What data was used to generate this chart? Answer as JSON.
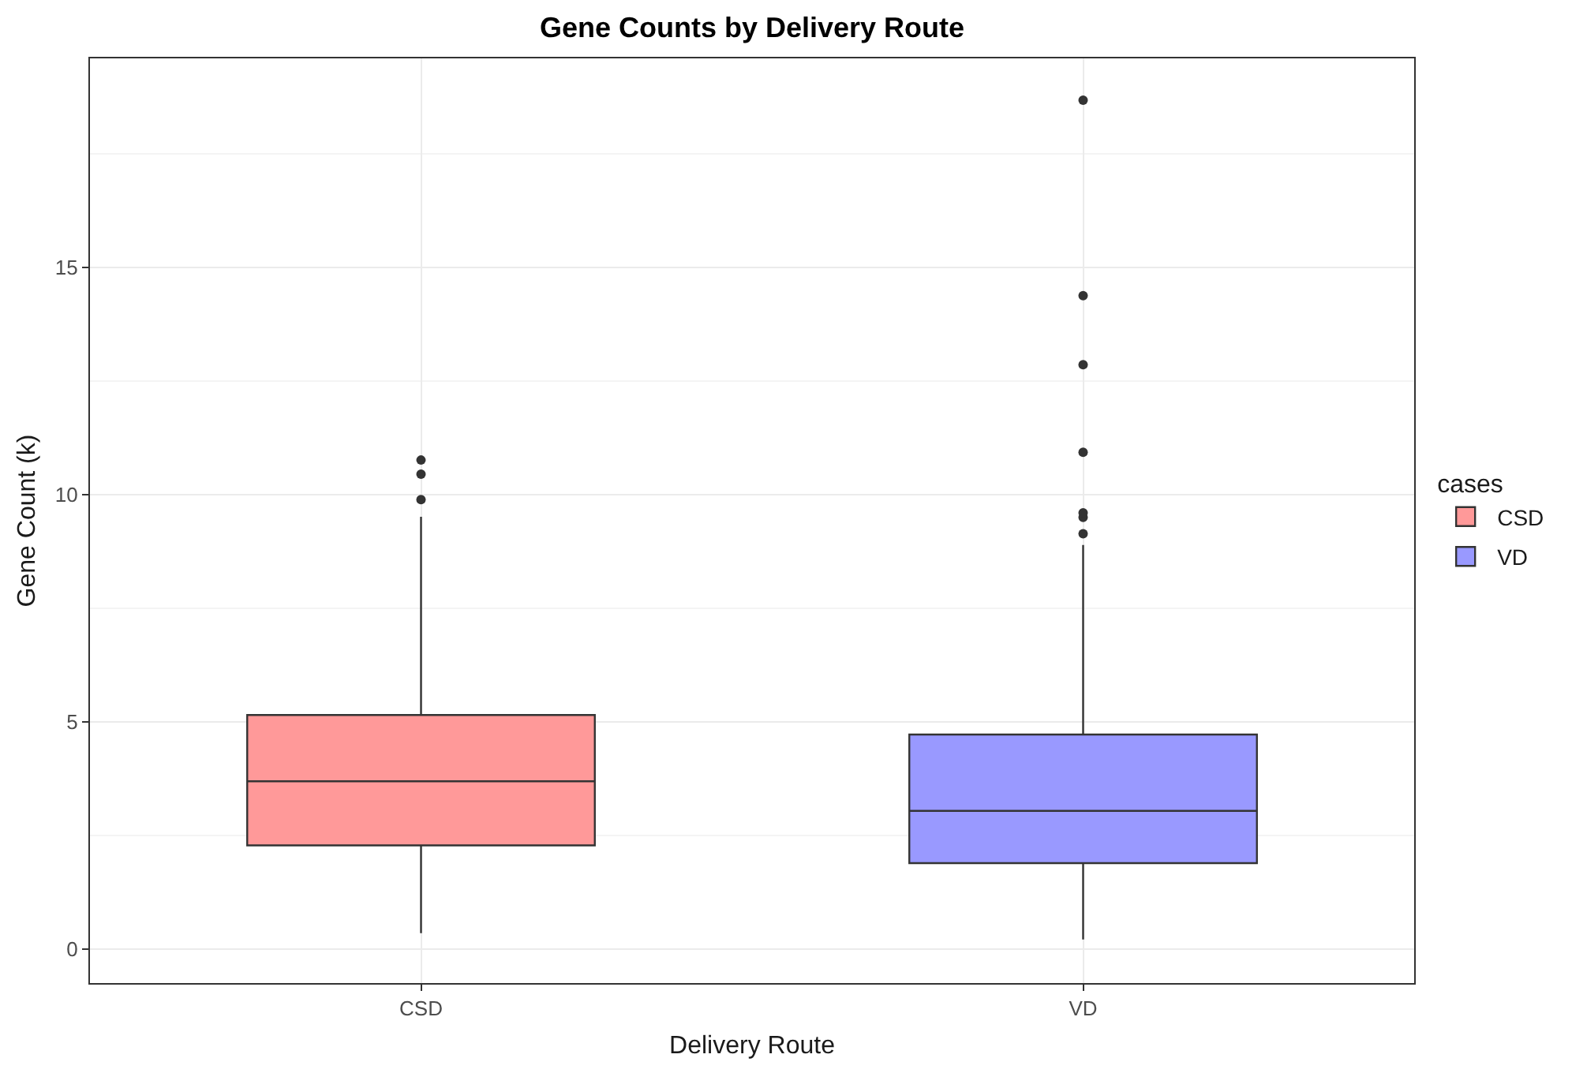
{
  "chart_data": {
    "type": "box",
    "title": "Gene Counts by Delivery Route",
    "xlabel": "Delivery Route",
    "ylabel": "Gene Count (k)",
    "legend_title": "cases",
    "categories": [
      "CSD",
      "VD"
    ],
    "series": [
      {
        "name": "CSD",
        "color": "#ff9999",
        "boxes": [
          {
            "low": 0.35,
            "q1": 2.28,
            "median": 3.69,
            "q3": 5.15,
            "high": 9.51,
            "outliers": [
              9.89,
              10.45,
              10.76
            ]
          },
          null
        ]
      },
      {
        "name": "VD",
        "color": "#9999ff",
        "boxes": [
          null,
          {
            "low": 0.21,
            "q1": 1.89,
            "median": 3.04,
            "q3": 4.72,
            "high": 8.89,
            "outliers": [
              9.14,
              9.5,
              9.6,
              10.93,
              12.86,
              14.38,
              18.68
            ]
          }
        ]
      }
    ],
    "ylim": [
      -0.75,
      19.6
    ],
    "yticks": [
      0,
      5,
      10,
      15
    ],
    "grid": true,
    "legend": "right"
  }
}
